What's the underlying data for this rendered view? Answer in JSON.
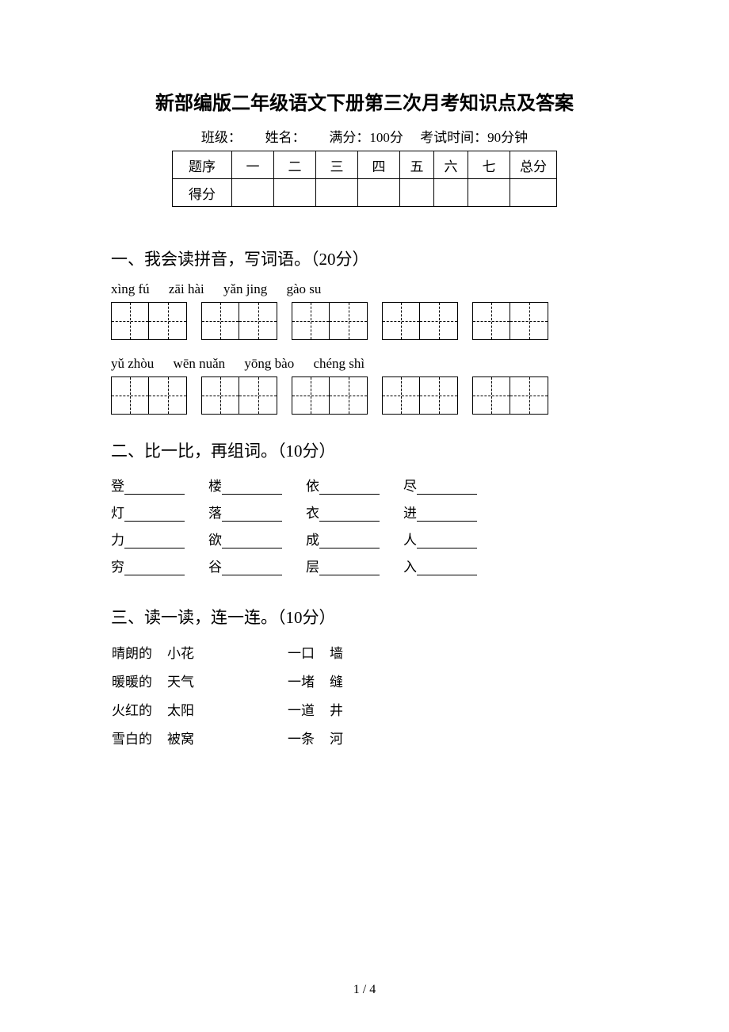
{
  "title": "新部编版二年级语文下册第三次月考知识点及答案",
  "info": {
    "class_label": "班级：",
    "name_label": "姓名：",
    "full_score_label": "满分：100分",
    "duration_label": "考试时间：90分钟"
  },
  "score_table": {
    "row1": [
      "题序",
      "一",
      "二",
      "三",
      "四",
      "五",
      "六",
      "七",
      "总分"
    ],
    "row2_label": "得分"
  },
  "section1": {
    "heading": "一、我会读拼音，写词语。（20分）",
    "pinyin_row1": [
      "xìng fú",
      "zāi hài",
      "yǎn jing",
      "gào su"
    ],
    "pinyin_row2": [
      "yǔ zhòu",
      "wēn nuǎn",
      "yōng bào",
      "chéng shì"
    ]
  },
  "section2": {
    "heading": "二、比一比，再组词。（10分）",
    "rows": [
      [
        "登",
        "楼",
        "依",
        "尽"
      ],
      [
        "灯",
        "落",
        "衣",
        "进"
      ],
      [
        "力",
        "欲",
        "成",
        "人"
      ],
      [
        "穷",
        "谷",
        "层",
        "入"
      ]
    ]
  },
  "section3": {
    "heading": "三、读一读，连一连。（10分）",
    "left": [
      [
        "晴朗的",
        "小花"
      ],
      [
        "暖暖的",
        "天气"
      ],
      [
        "火红的",
        "太阳"
      ],
      [
        "雪白的",
        "被窝"
      ]
    ],
    "right": [
      [
        "一口",
        "墙"
      ],
      [
        "一堵",
        "缝"
      ],
      [
        "一道",
        "井"
      ],
      [
        "一条",
        "河"
      ]
    ]
  },
  "pagenum": "1 / 4"
}
